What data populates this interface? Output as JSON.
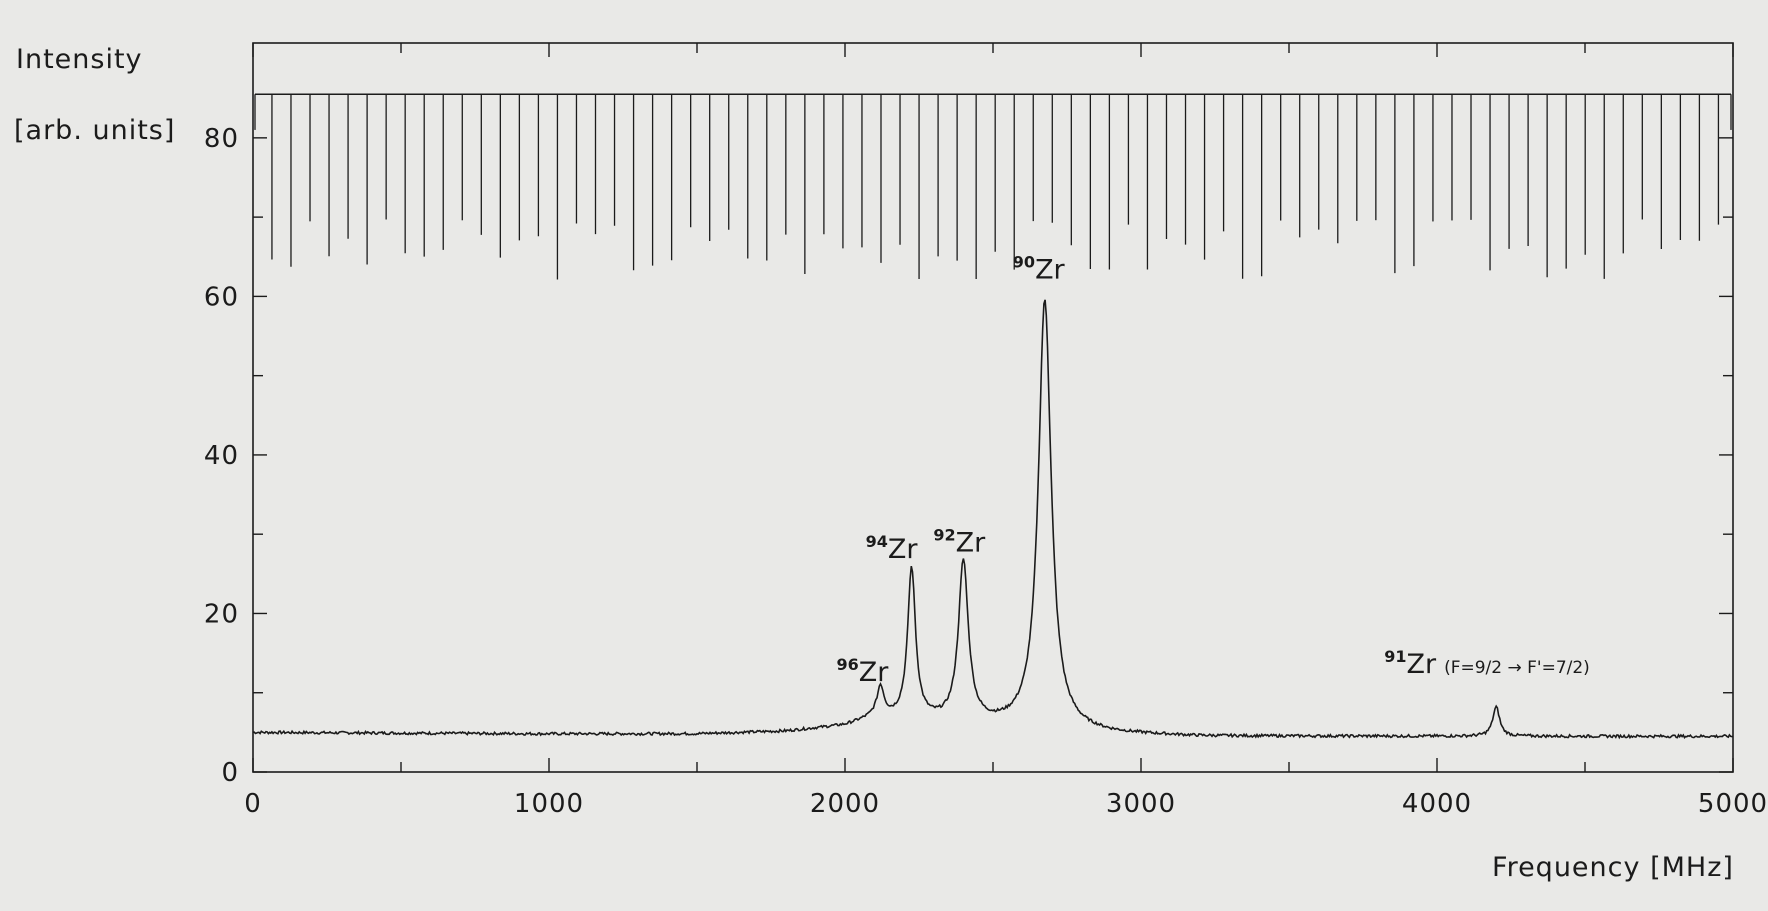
{
  "chart_data": {
    "type": "line",
    "ylabel_line1": "Intensity",
    "ylabel_line2": "[arb. units]",
    "xlabel": "Frequency [MHz]",
    "xlim": [
      0,
      5000
    ],
    "ylim": [
      0,
      90
    ],
    "grid": false,
    "x_ticks": [
      0,
      1000,
      2000,
      3000,
      4000,
      5000
    ],
    "x_tick_labels": [
      "0",
      "1000",
      "2000",
      "3000",
      "4000",
      "5000"
    ],
    "y_ticks": [
      0,
      20,
      40,
      60,
      80
    ],
    "y_tick_labels": [
      "0",
      "20",
      "40",
      "60",
      "80"
    ],
    "series": [
      {
        "role": "spectrum",
        "baseline": [
          [
            0,
            5.0
          ],
          [
            500,
            4.9
          ],
          [
            1000,
            4.8
          ],
          [
            1500,
            4.8
          ],
          [
            1800,
            5.1
          ],
          [
            2000,
            5.8
          ],
          [
            2100,
            6.8
          ],
          [
            2900,
            4.8
          ],
          [
            3200,
            4.5
          ],
          [
            4000,
            4.5
          ],
          [
            4500,
            4.5
          ],
          [
            5000,
            4.5
          ]
        ],
        "peaks": [
          {
            "x": 2120,
            "height": 10.5,
            "label_sup": "96",
            "label": "Zr"
          },
          {
            "x": 2225,
            "height": 25.5,
            "label_sup": "94",
            "label": "Zr"
          },
          {
            "x": 2400,
            "height": 26.3,
            "label_sup": "92",
            "label": "Zr"
          },
          {
            "x": 2675,
            "height": 59.5,
            "label_sup": "90",
            "label": "Zr"
          },
          {
            "x": 4200,
            "height": 8.2,
            "label_sup": "91",
            "label": "Zr",
            "note": "(F=9/2 → F'=7/2)"
          }
        ]
      },
      {
        "role": "reference transmission fringes",
        "top_level": 85.5,
        "period_mhz": 64.3,
        "first_dip_mhz": 64,
        "dip_minimum_range": [
          62,
          70
        ]
      }
    ]
  }
}
